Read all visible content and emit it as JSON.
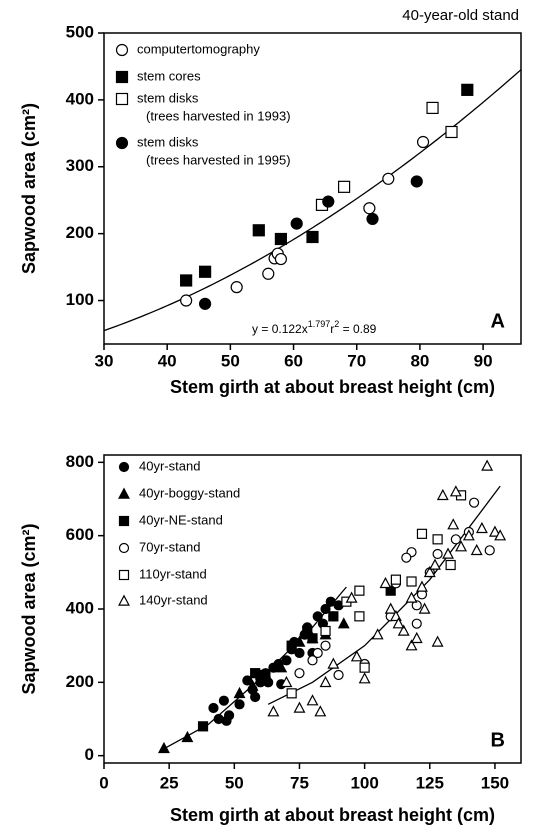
{
  "chart_data": [
    {
      "type": "scatter",
      "title": "40-year-old stand",
      "panel_label": "A",
      "x_label": "Stem girth at about breast height (cm)",
      "y_label": "Sapwood  area (cm²)",
      "xlim": [
        30,
        96
      ],
      "xticks": [
        30,
        40,
        50,
        60,
        70,
        80,
        90
      ],
      "ylim": [
        35,
        500
      ],
      "yticks": [
        100,
        200,
        300,
        400,
        500
      ],
      "fit": {
        "prefix": "y = ",
        "a": 0.122,
        "x": "x",
        "b": 1.797,
        "r_label": "r",
        "r_exp": "2",
        "r2_sep": " = ",
        "r2": 0.89
      },
      "series": [
        {
          "name": "computertomography",
          "marker": "circle",
          "filled": false,
          "color": "#000",
          "x": [
            43,
            51,
            56,
            57,
            57.5,
            58,
            72,
            75,
            80.5
          ],
          "values": [
            100,
            120,
            140,
            163,
            170,
            162,
            238,
            282,
            337
          ]
        },
        {
          "name": "stem cores",
          "marker": "square",
          "filled": true,
          "color": "#000",
          "x": [
            43,
            46,
            54.5,
            58,
            63,
            87.5
          ],
          "values": [
            130,
            143,
            205,
            192,
            195,
            415
          ]
        },
        {
          "name": "stem disks",
          "note": "(trees harvested in 1993)",
          "marker": "square",
          "filled": false,
          "color": "#000",
          "x": [
            64.5,
            68,
            82,
            85
          ],
          "values": [
            243,
            270,
            388,
            352
          ]
        },
        {
          "name": "stem disks",
          "note": "(trees harvested in 1995)",
          "marker": "circle",
          "filled": true,
          "color": "#000",
          "x": [
            46,
            60.5,
            65.5,
            72.5,
            79.5
          ],
          "values": [
            95,
            215,
            248,
            222,
            278
          ]
        }
      ]
    },
    {
      "type": "scatter",
      "panel_label": "B",
      "x_label": "Stem girth at about breast height (cm)",
      "y_label": "Sapwood  area (cm²)",
      "xlim": [
        0,
        160
      ],
      "xticks": [
        0,
        25,
        50,
        75,
        100,
        125,
        150
      ],
      "ylim": [
        -20,
        820
      ],
      "yticks": [
        0,
        200,
        400,
        600,
        800
      ],
      "fits": [
        {
          "x": [
            22,
            40,
            60,
            80,
            93
          ],
          "values": [
            15,
            85,
            210,
            350,
            460
          ]
        },
        {
          "x": [
            63,
            80,
            100,
            125,
            152
          ],
          "values": [
            140,
            200,
            300,
            480,
            735
          ]
        }
      ],
      "series": [
        {
          "name": "40yr-stand",
          "marker": "circle",
          "filled": true,
          "color": "#000",
          "x": [
            42,
            44,
            46,
            48,
            52,
            55,
            57,
            58,
            60,
            62,
            65,
            67,
            68,
            70,
            72,
            75,
            77,
            78,
            80,
            82,
            84,
            85,
            87,
            88,
            90,
            47,
            63,
            73
          ],
          "values": [
            130,
            100,
            150,
            110,
            140,
            205,
            180,
            160,
            200,
            225,
            240,
            250,
            195,
            260,
            290,
            280,
            330,
            350,
            280,
            380,
            360,
            400,
            420,
            380,
            410,
            95,
            200,
            310
          ]
        },
        {
          "name": "40yr-boggy-stand",
          "marker": "triangle",
          "filled": true,
          "color": "#000",
          "x": [
            23,
            32,
            52,
            57,
            62,
            68,
            75,
            80,
            85,
            92
          ],
          "values": [
            20,
            50,
            170,
            190,
            210,
            240,
            310,
            320,
            330,
            360
          ]
        },
        {
          "name": "40yr-NE-stand",
          "marker": "square",
          "filled": true,
          "color": "#000",
          "x": [
            38,
            58,
            60,
            62,
            72,
            80,
            88,
            110,
            78
          ],
          "values": [
            80,
            225,
            220,
            205,
            300,
            320,
            380,
            450,
            340
          ]
        },
        {
          "name": "70yr-stand",
          "marker": "circle",
          "filled": false,
          "color": "#000",
          "x": [
            75,
            80,
            82,
            85,
            90,
            100,
            110,
            112,
            118,
            120,
            122,
            125,
            128,
            135,
            140,
            142,
            148,
            120,
            116
          ],
          "values": [
            225,
            260,
            280,
            300,
            220,
            250,
            380,
            470,
            555,
            410,
            440,
            500,
            550,
            590,
            610,
            690,
            560,
            360,
            540
          ]
        },
        {
          "name": "110yr-stand",
          "marker": "square",
          "filled": false,
          "color": "#000",
          "x": [
            72,
            85,
            93,
            98,
            100,
            112,
            118,
            122,
            128,
            133,
            137,
            98
          ],
          "values": [
            170,
            340,
            420,
            450,
            240,
            480,
            475,
            605,
            590,
            520,
            710,
            380
          ]
        },
        {
          "name": "140yr-stand",
          "marker": "triangle",
          "filled": false,
          "color": "#000",
          "x": [
            65,
            70,
            75,
            80,
            83,
            85,
            88,
            95,
            97,
            100,
            105,
            108,
            110,
            112,
            115,
            118,
            120,
            122,
            125,
            128,
            130,
            132,
            134,
            135,
            137,
            140,
            143,
            145,
            147,
            150,
            152,
            118,
            123,
            113,
            127
          ],
          "values": [
            120,
            200,
            130,
            150,
            120,
            200,
            250,
            430,
            270,
            210,
            330,
            470,
            400,
            380,
            340,
            300,
            320,
            460,
            500,
            310,
            710,
            550,
            630,
            720,
            570,
            600,
            560,
            620,
            790,
            610,
            600,
            430,
            400,
            360,
            520
          ]
        }
      ]
    }
  ]
}
